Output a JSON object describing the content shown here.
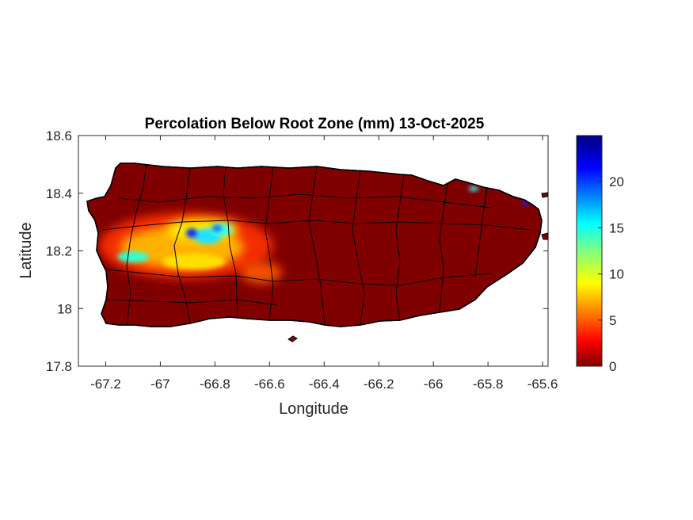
{
  "figure": {
    "title": "Percolation Below Root Zone (mm) 13-Oct-2025",
    "xlabel": "Longitude",
    "ylabel": "Latitude"
  },
  "chart_data": {
    "type": "heatmap",
    "title": "Percolation Below Root Zone (mm) 13-Oct-2025",
    "xlabel": "Longitude",
    "ylabel": "Latitude",
    "xlim": [
      -67.3,
      -65.58
    ],
    "ylim": [
      17.8,
      18.6
    ],
    "x_ticks": [
      "-67.2",
      "-67",
      "-66.8",
      "-66.6",
      "-66.4",
      "-66.2",
      "-66",
      "-65.8",
      "-65.6"
    ],
    "y_ticks": [
      "17.8",
      "18",
      "18.2",
      "18.4",
      "18.6"
    ],
    "colormap": "jet",
    "colorbar": {
      "range": [
        0,
        25
      ],
      "ticks": [
        "0",
        "5",
        "10",
        "15",
        "20"
      ]
    },
    "background_value_mm": 0,
    "hotspots": [
      {
        "region": "west-central interior",
        "lon": -66.88,
        "lat": 18.27,
        "value_mm": 24
      },
      {
        "region": "west-central interior",
        "lon": -66.8,
        "lat": 18.27,
        "value_mm": 16
      },
      {
        "region": "western valley",
        "lon": -67.1,
        "lat": 18.17,
        "value_mm": 14
      },
      {
        "region": "central-west band",
        "lon": -66.92,
        "lat": 18.18,
        "value_mm": 9
      },
      {
        "region": "south-central interior",
        "lon": -66.63,
        "lat": 18.13,
        "value_mm": 4
      },
      {
        "region": "northeast coast",
        "lon": -65.87,
        "lat": 18.41,
        "value_mm": 14
      },
      {
        "region": "northeast tip",
        "lon": -65.63,
        "lat": 18.37,
        "value_mm": 22
      }
    ]
  }
}
